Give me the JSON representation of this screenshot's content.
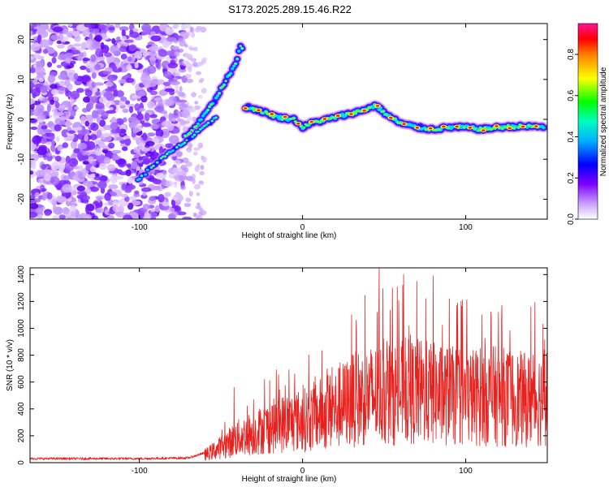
{
  "title": "S173.2025.289.15.46.R22",
  "chart_data": [
    {
      "type": "heatmap",
      "name": "spectrogram",
      "xlabel": "Height of straight line (km)",
      "ylabel": "Frequency (Hz)",
      "xlim": [
        -167,
        150
      ],
      "ylim": [
        -25,
        24
      ],
      "xticks": [
        -100,
        0,
        100
      ],
      "yticks": [
        -20,
        -10,
        0,
        10,
        20
      ],
      "colorbar": {
        "label": "Normalized spectral amplitude",
        "range": [
          0,
          0.95
        ],
        "ticks": [
          0.0,
          0.2,
          0.4,
          0.6,
          0.8
        ],
        "ticklabels": [
          "0.0",
          "0.2",
          "0.4",
          "0.6",
          "0.8"
        ],
        "colors": [
          "#ffffff",
          "#9b30ff",
          "#0000ff",
          "#00ffff",
          "#00ff00",
          "#ffff00",
          "#ff0000",
          "#ff1493"
        ]
      },
      "ridge_x": [
        -33,
        -25,
        -15,
        -5,
        0,
        5,
        15,
        25,
        35,
        45,
        52,
        60,
        70,
        80,
        90,
        100,
        110,
        120,
        130,
        140,
        147
      ],
      "ridge_y": [
        3,
        2,
        0.5,
        0,
        -2,
        -1,
        0,
        1,
        2,
        3.5,
        1,
        -1,
        -2,
        -2.5,
        -2,
        -2,
        -2.5,
        -2,
        -1.8,
        -1.8,
        -1.8
      ],
      "branch_upper_x": [
        -70,
        -62,
        -55,
        -48,
        -42,
        -38
      ],
      "branch_upper_y": [
        -4,
        0,
        4,
        9,
        13,
        18
      ],
      "branch_lower_x": [
        -100,
        -90,
        -80,
        -70,
        -60,
        -52
      ],
      "branch_lower_y": [
        -15,
        -11,
        -8,
        -5,
        -2,
        1
      ]
    },
    {
      "type": "line",
      "name": "snr",
      "xlabel": "Height of straight line (km)",
      "ylabel": "SNR (10 * v/v)",
      "xlim": [
        -167,
        150
      ],
      "ylim": [
        0,
        1450
      ],
      "xticks": [
        -100,
        0,
        100
      ],
      "yticks": [
        0,
        200,
        400,
        600,
        800,
        1000,
        1200,
        1400
      ],
      "color": "#e8201e",
      "envelope_x": [
        -167,
        -100,
        -70,
        -58,
        -50,
        -40,
        -30,
        -20,
        -10,
        0,
        10,
        20,
        30,
        40,
        50,
        60,
        70,
        80,
        90,
        100,
        110,
        120,
        130,
        140,
        150
      ],
      "envelope_y": [
        30,
        30,
        35,
        80,
        140,
        220,
        270,
        320,
        360,
        380,
        430,
        480,
        560,
        600,
        620,
        630,
        640,
        620,
        600,
        590,
        600,
        600,
        580,
        560,
        600
      ],
      "spikes": [
        {
          "x": -42,
          "y": 560
        },
        {
          "x": -30,
          "y": 470
        },
        {
          "x": 30,
          "y": 1100
        },
        {
          "x": 33,
          "y": 1000
        },
        {
          "x": 47,
          "y": 1450
        },
        {
          "x": 55,
          "y": 1300
        },
        {
          "x": 62,
          "y": 1400
        },
        {
          "x": 70,
          "y": 1350
        },
        {
          "x": 80,
          "y": 1390
        },
        {
          "x": 90,
          "y": 1220
        },
        {
          "x": 98,
          "y": 1210
        },
        {
          "x": 110,
          "y": 1100
        },
        {
          "x": 120,
          "y": 1120
        },
        {
          "x": 140,
          "y": 1160
        },
        {
          "x": 148,
          "y": 840
        }
      ]
    }
  ]
}
